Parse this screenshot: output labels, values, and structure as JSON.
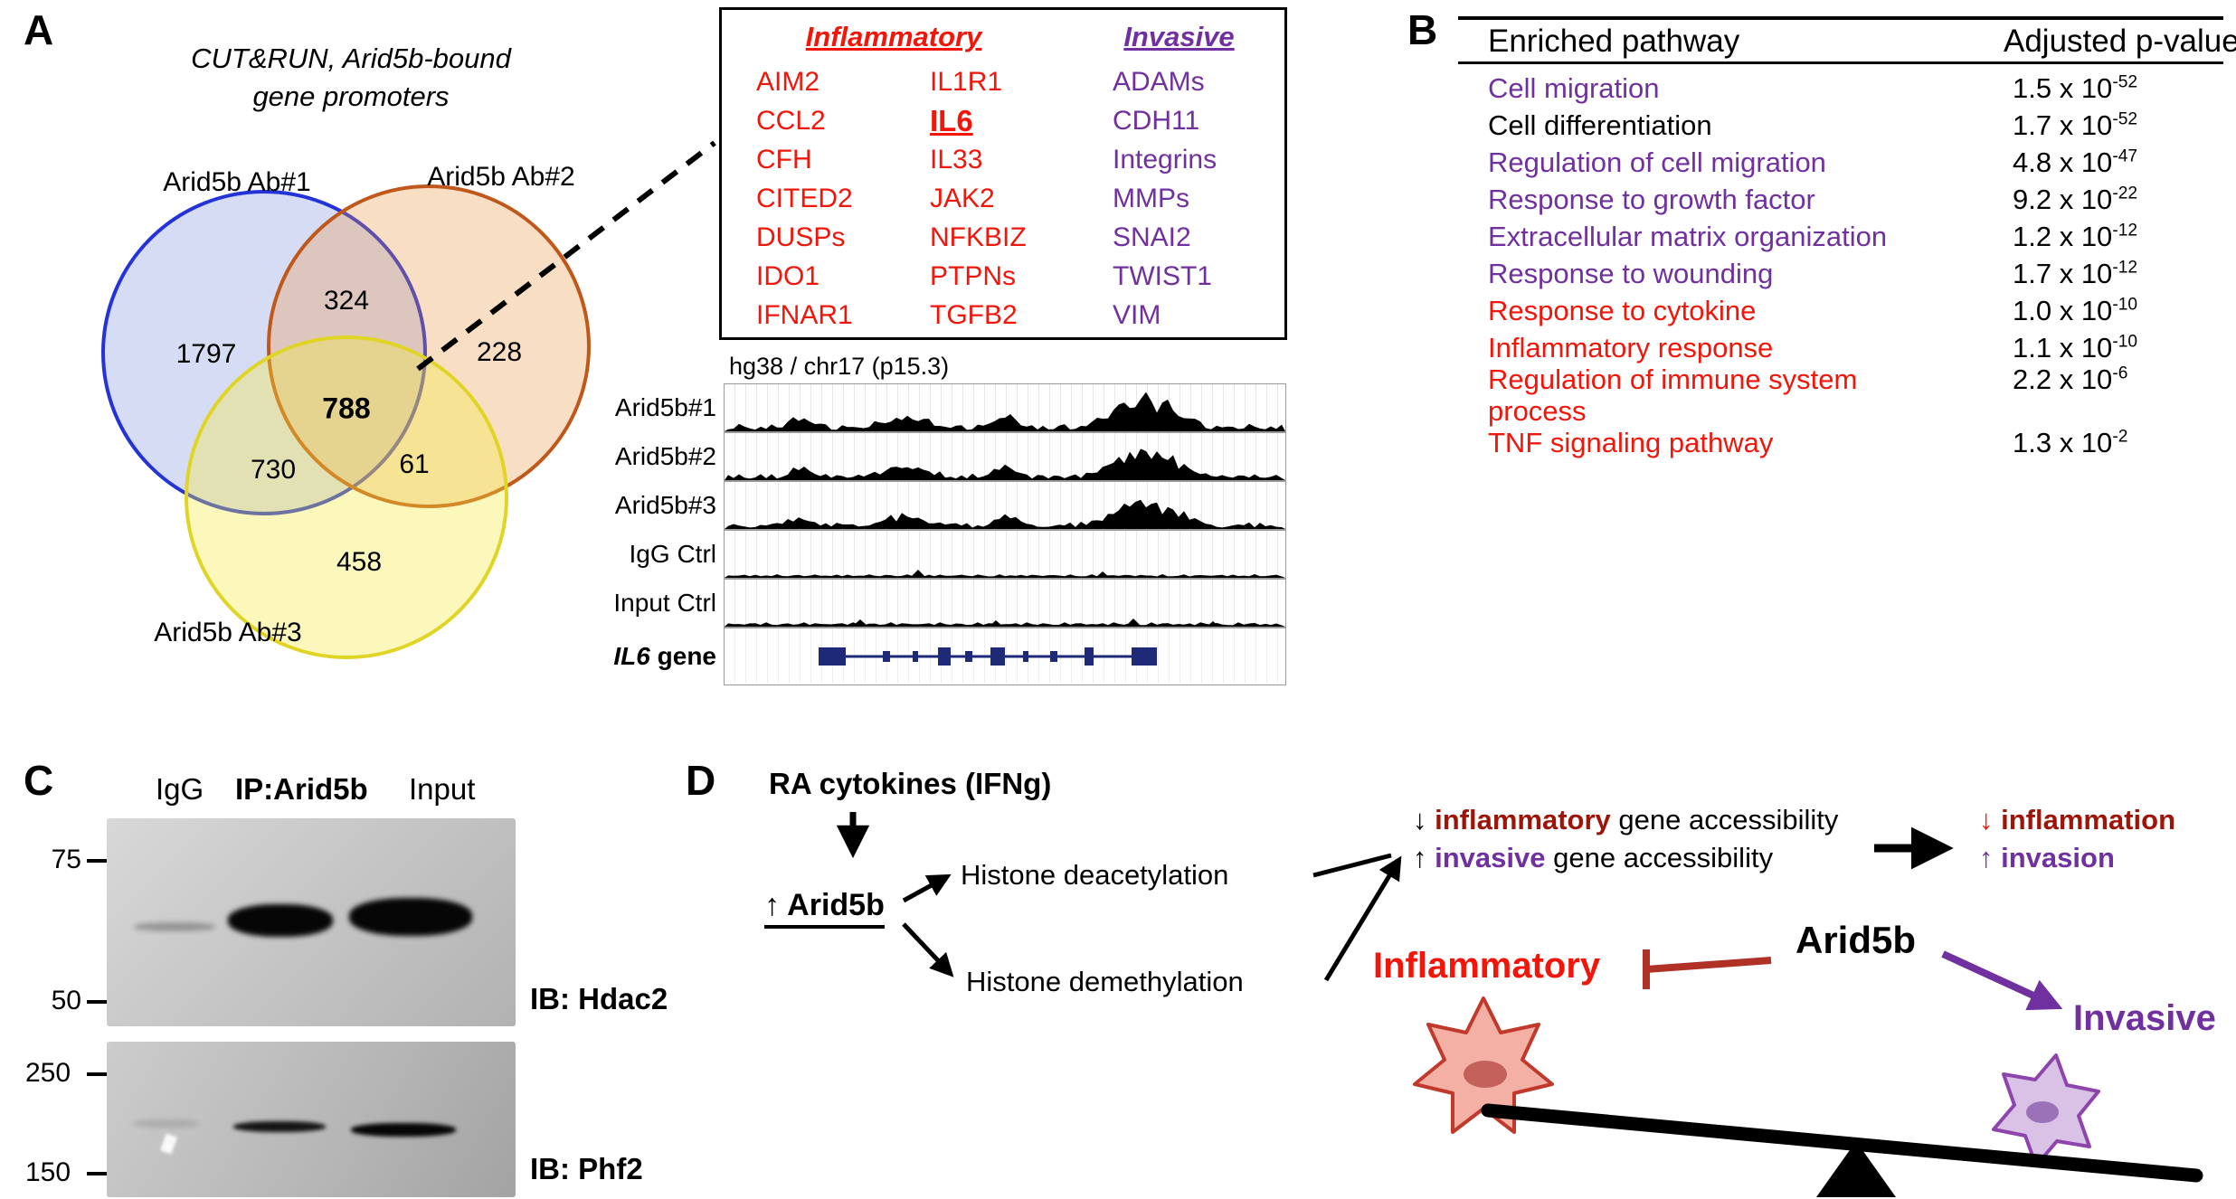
{
  "colors": {
    "red": "#f1150a",
    "purple": "#7030a0",
    "dark_red": "#9e1408",
    "black": "#000000",
    "venn_blue": "#2433d8",
    "venn_orange": "#c0571b",
    "venn_yellow": "#e0d527",
    "gene_model_blue": "#1e2a78"
  },
  "panelA": {
    "label": "A",
    "title": [
      "CUT&RUN, Arid5b-bound",
      "gene promoters"
    ],
    "venn": {
      "set1_label": "Arid5b Ab#1",
      "set2_label": "Arid5b Ab#2",
      "set3_label": "Arid5b Ab#3",
      "only_set1": "1797",
      "only_set2": "228",
      "only_set3": "458",
      "set1_set2": "324",
      "set1_set3": "730",
      "set2_set3": "61",
      "all_three": "788"
    },
    "gene_box": {
      "inflammatory_header": "Inflammatory",
      "invasive_header": "Invasive",
      "inflammatory_col1": [
        "AIM2",
        "CCL2",
        "CFH",
        "CITED2",
        "DUSPs",
        "IDO1",
        "IFNAR1"
      ],
      "inflammatory_col2": [
        "IL1R1",
        "IL6",
        "IL33",
        "JAK2",
        "NFKBIZ",
        "PTPNs",
        "TGFB2"
      ],
      "invasive_col": [
        "ADAMs",
        "CDH11",
        "Integrins",
        "MMPs",
        "SNAI2",
        "TWIST1",
        "VIM"
      ]
    },
    "browser": {
      "locus": "hg38 / chr17 (p15.3)",
      "track_labels": [
        "Arid5b#1",
        "Arid5b#2",
        "Arid5b#3",
        "IgG Ctrl",
        "Input Ctrl"
      ],
      "gene_label_italic": "IL6",
      "gene_label_rest": " gene"
    }
  },
  "panelB": {
    "label": "B",
    "header": {
      "pathway": "Enriched pathway",
      "pvalue": "Adjusted p-value"
    },
    "rows": [
      {
        "pathway": "Cell migration",
        "color": "purple",
        "p_base": "1.5 x 10",
        "p_exp": "-52"
      },
      {
        "pathway": "Cell differentiation",
        "color": "black",
        "p_base": "1.7 x 10",
        "p_exp": "-52"
      },
      {
        "pathway": "Regulation of cell migration",
        "color": "purple",
        "p_base": "4.8 x 10",
        "p_exp": "-47"
      },
      {
        "pathway": "Response to growth factor",
        "color": "purple",
        "p_base": "9.2 x 10",
        "p_exp": "-22"
      },
      {
        "pathway": "Extracellular matrix organization",
        "color": "purple",
        "p_base": "1.2 x 10",
        "p_exp": "-12"
      },
      {
        "pathway": "Response to wounding",
        "color": "purple",
        "p_base": "1.7 x 10",
        "p_exp": "-12"
      },
      {
        "pathway": "Response to cytokine",
        "color": "red",
        "p_base": "1.0 x 10",
        "p_exp": "-10"
      },
      {
        "pathway": "Inflammatory response",
        "color": "red",
        "p_base": "1.1 x 10",
        "p_exp": "-10"
      },
      {
        "pathway": "Regulation of immune system process",
        "color": "red",
        "p_base": "2.2 x 10",
        "p_exp": "-6"
      },
      {
        "pathway": "TNF signaling pathway",
        "color": "red",
        "p_base": "1.3 x 10",
        "p_exp": "-2"
      }
    ]
  },
  "panelC": {
    "label": "C",
    "lanes": [
      "IgG",
      "IP:Arid5b",
      "Input"
    ],
    "mw_blot1": [
      "75",
      "50"
    ],
    "mw_blot2": [
      "250",
      "150"
    ],
    "blot1_label": "IB: Hdac2",
    "blot2_label": "IB: Phf2"
  },
  "panelD": {
    "label": "D",
    "stimulus": "RA cytokines (IFNg)",
    "arid5b": "↑ Arid5b",
    "deacetylation": "Histone deacetylation",
    "demethylation": "Histone demethylation",
    "accessibility": {
      "down_arrow": "↓",
      "inflammatory_word": "inflammatory",
      "line1_rest": " gene accessibility",
      "up_arrow": "↑",
      "invasive_word": "invasive",
      "line2_rest": " gene accessibility"
    },
    "outcome": {
      "down_arrow": "↓",
      "inflammation": "inflammation",
      "up_arrow": "↑",
      "invasion": "invasion"
    },
    "seesaw": {
      "left": "Inflammatory",
      "center": "Arid5b",
      "right": "Invasive"
    }
  }
}
